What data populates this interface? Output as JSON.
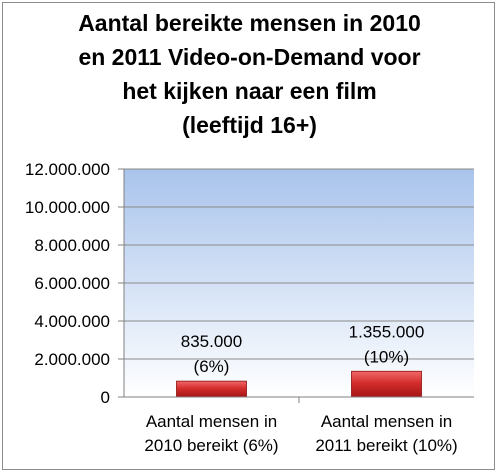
{
  "chart_data": {
    "type": "bar",
    "title_lines": [
      "Aantal bereikte mensen in 2010",
      "en 2011 Video-on-Demand voor",
      "het kijken naar een film",
      "(leeftijd 16+)"
    ],
    "categories": [
      [
        "Aantal mensen in",
        "2010 bereikt (6%)"
      ],
      [
        "Aantal mensen in",
        "2011 bereikt (10%)"
      ]
    ],
    "values": [
      835000,
      1355000
    ],
    "data_labels": [
      [
        "835.000",
        "(6%)"
      ],
      [
        "1.355.000",
        "(10%)"
      ]
    ],
    "ylim": [
      0,
      12000000
    ],
    "yticks": [
      0,
      2000000,
      4000000,
      6000000,
      8000000,
      10000000,
      12000000
    ],
    "ytick_labels": [
      "0",
      "2.000.000",
      "4.000.000",
      "6.000.000",
      "8.000.000",
      "10.000.000",
      "12.000.000"
    ],
    "grid": true,
    "bar_color": "#d42d2d",
    "plot_background": [
      "#a9c4ec",
      "#ffffff"
    ]
  }
}
